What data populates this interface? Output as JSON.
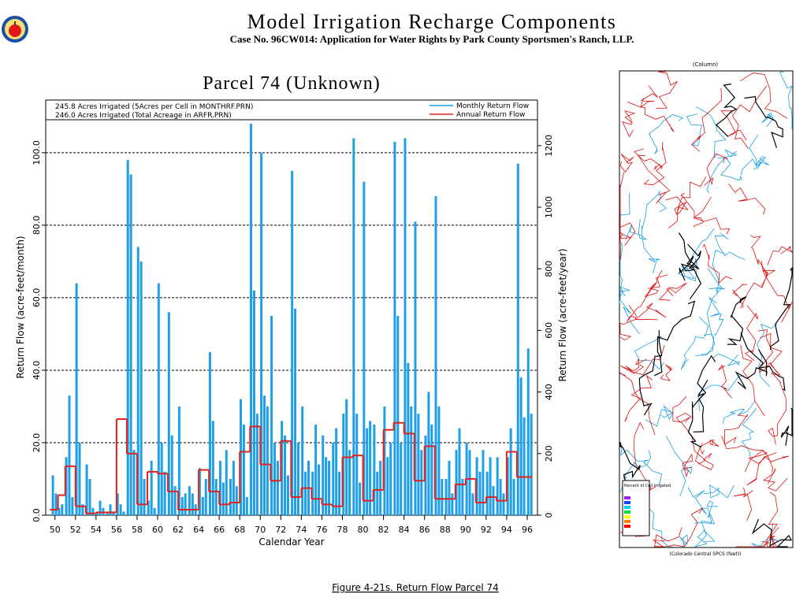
{
  "header": {
    "title": "Model Irrigation Recharge Components",
    "subtitle": "Case No. 96CW014: Application for Water Rights by Park County Sportsmen's Ranch, LLP."
  },
  "chart_data": {
    "type": "bar",
    "title": "Parcel 74 (Unknown)",
    "notes": [
      "245.8 Acres Irrigated (5Acres per Cell in MONTHRF.PRN)",
      "246.0 Acres Irrigated (Total Acreage in ARFR.PRN)"
    ],
    "xlabel": "Calendar Year",
    "ylabel": "Return Flow (acre-feet/month)",
    "y2label": "Return Flow (acre-feet/year)",
    "xlim": [
      49.1,
      97
    ],
    "xticks": [
      50,
      52,
      54,
      56,
      58,
      60,
      62,
      64,
      66,
      68,
      70,
      72,
      74,
      76,
      78,
      80,
      82,
      84,
      86,
      88,
      90,
      92,
      94,
      96
    ],
    "ylim": [
      0,
      109.1
    ],
    "yticks": [
      {
        "value": 0,
        "label": "0.0"
      },
      {
        "value": 20,
        "label": "20.0"
      },
      {
        "value": 40,
        "label": "40.0"
      },
      {
        "value": 60,
        "label": "60.0"
      },
      {
        "value": 80,
        "label": "80.0"
      },
      {
        "value": 100,
        "label": "100.0"
      }
    ],
    "y2lim": [
      0,
      1284
    ],
    "y2ticks": [
      0,
      200,
      400,
      600,
      800,
      1000,
      1200
    ],
    "grid": true,
    "legend": "upper right",
    "series": [
      {
        "name": "Monthly Return Flow",
        "color": "#1f9fe6",
        "type": "bar",
        "x": [
          49.8,
          50.1,
          50.4,
          50.7,
          51.1,
          51.4,
          51.7,
          52.1,
          52.4,
          52.7,
          53.1,
          53.4,
          53.7,
          54.1,
          54.4,
          54.7,
          55.1,
          55.4,
          55.7,
          56.1,
          56.4,
          56.7,
          57.1,
          57.4,
          57.7,
          58.1,
          58.4,
          58.7,
          59.1,
          59.4,
          59.7,
          60.1,
          60.4,
          60.7,
          61.1,
          61.4,
          61.7,
          62.1,
          62.4,
          62.7,
          63.1,
          63.4,
          63.7,
          64.1,
          64.4,
          64.7,
          65.1,
          65.4,
          65.7,
          66.1,
          66.4,
          66.7,
          67.1,
          67.4,
          67.7,
          68.1,
          68.4,
          68.7,
          69.1,
          69.4,
          69.7,
          70.1,
          70.4,
          70.7,
          71.1,
          71.4,
          71.7,
          72.1,
          72.4,
          72.7,
          73.1,
          73.4,
          73.7,
          74.1,
          74.4,
          74.7,
          75.1,
          75.4,
          75.7,
          76.1,
          76.4,
          76.7,
          77.1,
          77.4,
          77.7,
          78.1,
          78.4,
          78.7,
          79.1,
          79.4,
          79.7,
          80.1,
          80.4,
          80.7,
          81.1,
          81.4,
          81.7,
          82.1,
          82.4,
          82.7,
          83.1,
          83.4,
          83.7,
          84.1,
          84.4,
          84.7,
          85.1,
          85.4,
          85.7,
          86.1,
          86.4,
          86.7,
          87.1,
          87.4,
          87.7,
          88.1,
          88.4,
          88.7,
          89.1,
          89.4,
          89.7,
          90.1,
          90.4,
          90.7,
          91.1,
          91.4,
          91.7,
          92.1,
          92.4,
          92.7,
          93.1,
          93.4,
          93.7,
          94.1,
          94.4,
          94.7,
          95.1,
          95.4,
          95.7,
          96.1,
          96.4
        ],
        "values": [
          11,
          6,
          2,
          3,
          16,
          33,
          5,
          64,
          20,
          3,
          14,
          10,
          2,
          1,
          4,
          2,
          1,
          3,
          1,
          6,
          3,
          1,
          98,
          94,
          18,
          74,
          70,
          10,
          4,
          15,
          2,
          64,
          20,
          12,
          56,
          22,
          8,
          30,
          5,
          6,
          8,
          6,
          3,
          13,
          5,
          10,
          45,
          26,
          10,
          15,
          9,
          18,
          10,
          15,
          8,
          32,
          25,
          5,
          108,
          62,
          28,
          100,
          33,
          30,
          55,
          20,
          15,
          26,
          22,
          11,
          95,
          57,
          20,
          30,
          12,
          15,
          12,
          25,
          14,
          22,
          16,
          15,
          20,
          24,
          12,
          28,
          32,
          18,
          104,
          28,
          9,
          92,
          24,
          26,
          25,
          12,
          15,
          30,
          16,
          20,
          103,
          55,
          20,
          104,
          42,
          30,
          81,
          28,
          18,
          22,
          34,
          25,
          88,
          30,
          10,
          10,
          15,
          6,
          18,
          24,
          10,
          20,
          18,
          6,
          16,
          12,
          18,
          12,
          16,
          8,
          16,
          10,
          6,
          16,
          24,
          10,
          97,
          38,
          27,
          46,
          28
        ]
      },
      {
        "name": "Annual Return Flow",
        "color": "#e3201b",
        "type": "step",
        "axis": "y2",
        "x": [
          49.5,
          50.3,
          51,
          52,
          53,
          54,
          56,
          57,
          58,
          59,
          60,
          61,
          62,
          64,
          65,
          66,
          67,
          68,
          69,
          70,
          71,
          72,
          73,
          74,
          75,
          76,
          77,
          78,
          79,
          80,
          81,
          82,
          83,
          84,
          85,
          86,
          87,
          88,
          89,
          90,
          91,
          92,
          93,
          94,
          95
        ],
        "values": [
          18,
          65,
          159,
          29,
          6,
          9,
          312,
          200,
          35,
          141,
          135,
          77,
          18,
          147,
          77,
          35,
          41,
          206,
          288,
          165,
          112,
          241,
          59,
          88,
          53,
          35,
          29,
          188,
          194,
          47,
          82,
          277,
          300,
          265,
          112,
          224,
          53,
          53,
          100,
          118,
          41,
          59,
          47,
          206,
          124
        ]
      }
    ]
  },
  "caption": "Figure 4-21s.  Return Flow Parcel 74",
  "map": {
    "column_label": "(Column)",
    "axis_label": "(Colorado Central SPCS (feet))",
    "legend_title": "Percent of Cell Irrigated"
  }
}
